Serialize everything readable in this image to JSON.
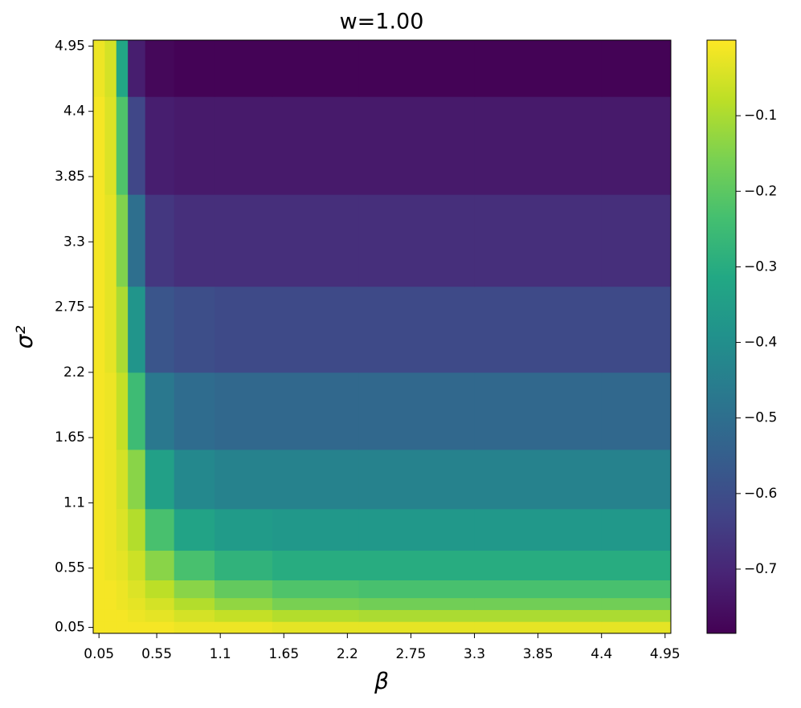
{
  "chart_data": {
    "type": "heatmap",
    "title": "w=1.00",
    "xlabel": "β",
    "ylabel": "σ²",
    "colormap": "viridis",
    "x": [
      0.05,
      0.15,
      0.25,
      0.35,
      0.55,
      0.85,
      1.25,
      1.85,
      2.75,
      3.85,
      4.95
    ],
    "y": [
      0.05,
      0.15,
      0.25,
      0.35,
      0.55,
      0.85,
      1.25,
      1.85,
      2.55,
      3.3,
      4.1,
      4.95
    ],
    "z": [
      [
        -0.01,
        -0.01,
        -0.01,
        -0.01,
        -0.01,
        -0.02,
        -0.02,
        -0.03,
        -0.03,
        -0.03,
        -0.03
      ],
      [
        -0.01,
        -0.01,
        -0.01,
        -0.02,
        -0.03,
        -0.05,
        -0.07,
        -0.09,
        -0.1,
        -0.1,
        -0.1
      ],
      [
        -0.01,
        -0.01,
        -0.02,
        -0.03,
        -0.05,
        -0.09,
        -0.13,
        -0.16,
        -0.17,
        -0.17,
        -0.17
      ],
      [
        -0.01,
        -0.01,
        -0.02,
        -0.04,
        -0.08,
        -0.14,
        -0.19,
        -0.22,
        -0.23,
        -0.23,
        -0.23
      ],
      [
        -0.01,
        -0.02,
        -0.03,
        -0.06,
        -0.14,
        -0.23,
        -0.28,
        -0.3,
        -0.3,
        -0.3,
        -0.3
      ],
      [
        -0.01,
        -0.02,
        -0.04,
        -0.09,
        -0.23,
        -0.33,
        -0.36,
        -0.37,
        -0.37,
        -0.37,
        -0.37
      ],
      [
        -0.01,
        -0.02,
        -0.05,
        -0.14,
        -0.34,
        -0.42,
        -0.44,
        -0.44,
        -0.44,
        -0.44,
        -0.44
      ],
      [
        -0.01,
        -0.02,
        -0.07,
        -0.25,
        -0.47,
        -0.51,
        -0.52,
        -0.52,
        -0.52,
        -0.52,
        -0.52
      ],
      [
        -0.01,
        -0.03,
        -0.1,
        -0.38,
        -0.58,
        -0.6,
        -0.61,
        -0.61,
        -0.61,
        -0.61,
        -0.61
      ],
      [
        -0.01,
        -0.03,
        -0.15,
        -0.5,
        -0.66,
        -0.68,
        -0.68,
        -0.68,
        -0.68,
        -0.68,
        -0.68
      ],
      [
        -0.01,
        -0.04,
        -0.22,
        -0.62,
        -0.72,
        -0.73,
        -0.73,
        -0.73,
        -0.73,
        -0.73,
        -0.73
      ],
      [
        -0.02,
        -0.05,
        -0.32,
        -0.72,
        -0.77,
        -0.78,
        -0.78,
        -0.78,
        -0.78,
        -0.78,
        -0.78
      ]
    ],
    "xlim": [
      0,
      5
    ],
    "ylim": [
      0,
      5
    ],
    "xticks": [
      0.05,
      0.55,
      1.1,
      1.65,
      2.2,
      2.75,
      3.3,
      3.85,
      4.4,
      4.95
    ],
    "yticks": [
      0.05,
      0.55,
      1.1,
      1.65,
      2.2,
      2.75,
      3.3,
      3.85,
      4.4,
      4.95
    ],
    "clim": [
      -0.785,
      0
    ],
    "cticks": [
      {
        "value": -0.1,
        "label": "−0.1"
      },
      {
        "value": -0.2,
        "label": "−0.2"
      },
      {
        "value": -0.3,
        "label": "−0.3"
      },
      {
        "value": -0.4,
        "label": "−0.4"
      },
      {
        "value": -0.5,
        "label": "−0.5"
      },
      {
        "value": -0.6,
        "label": "−0.6"
      },
      {
        "value": -0.7,
        "label": "−0.7"
      }
    ]
  }
}
